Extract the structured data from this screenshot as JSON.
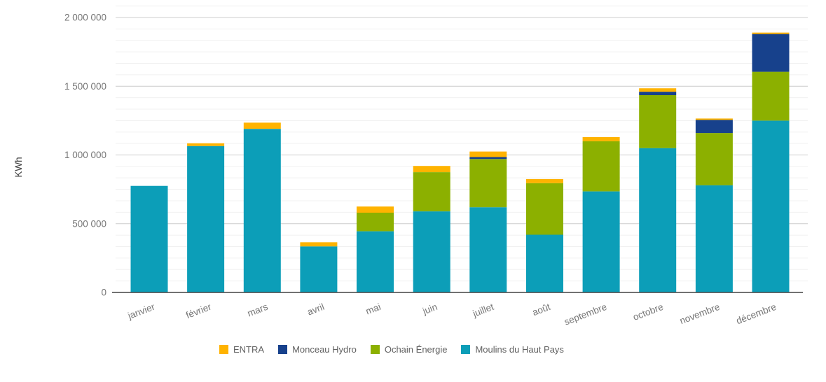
{
  "chart_data": {
    "type": "bar",
    "stacked": true,
    "ylabel": "KWh",
    "categories": [
      "janvier",
      "février",
      "mars",
      "avril",
      "mai",
      "juin",
      "juillet",
      "août",
      "septembre",
      "octobre",
      "novembre",
      "décembre"
    ],
    "series": [
      {
        "name": "Moulins du Haut Pays",
        "color": "#0C9EB8",
        "values": [
          775000,
          1065000,
          1190000,
          335000,
          445000,
          590000,
          620000,
          420000,
          735000,
          1050000,
          780000,
          1250000
        ]
      },
      {
        "name": "Ochain Énergie",
        "color": "#8CB000",
        "values": [
          0,
          0,
          0,
          0,
          135000,
          285000,
          350000,
          375000,
          365000,
          385000,
          380000,
          355000
        ]
      },
      {
        "name": "Monceau Hydro",
        "color": "#17418C",
        "values": [
          0,
          0,
          0,
          0,
          0,
          0,
          15000,
          0,
          0,
          25000,
          95000,
          275000
        ]
      },
      {
        "name": "ENTRA",
        "color": "#FFB300",
        "values": [
          0,
          20000,
          45000,
          30000,
          45000,
          45000,
          40000,
          30000,
          30000,
          25000,
          10000,
          10000
        ]
      }
    ],
    "y_major_ticks": {
      "values": [
        0,
        500000,
        1000000,
        1500000,
        2000000
      ],
      "labels": [
        "0",
        "500 000",
        "1 000 000",
        "1 500 000",
        "2 000 000"
      ]
    },
    "ylim": [
      0,
      2000000
    ],
    "minor_gridlines_between_majors": 5,
    "grid": true,
    "legend": {
      "position": "bottom",
      "items": [
        "ENTRA",
        "Monceau Hydro",
        "Ochain Énergie",
        "Moulins du Haut Pays"
      ]
    },
    "colors": {
      "axis_line": "#424242",
      "major_gridline": "#cccccc",
      "minor_gridline": "#f0f0f0",
      "tick_text": "#757575",
      "axis_title_text": "#424242",
      "legend_text": "#616161",
      "background": "#ffffff"
    }
  }
}
